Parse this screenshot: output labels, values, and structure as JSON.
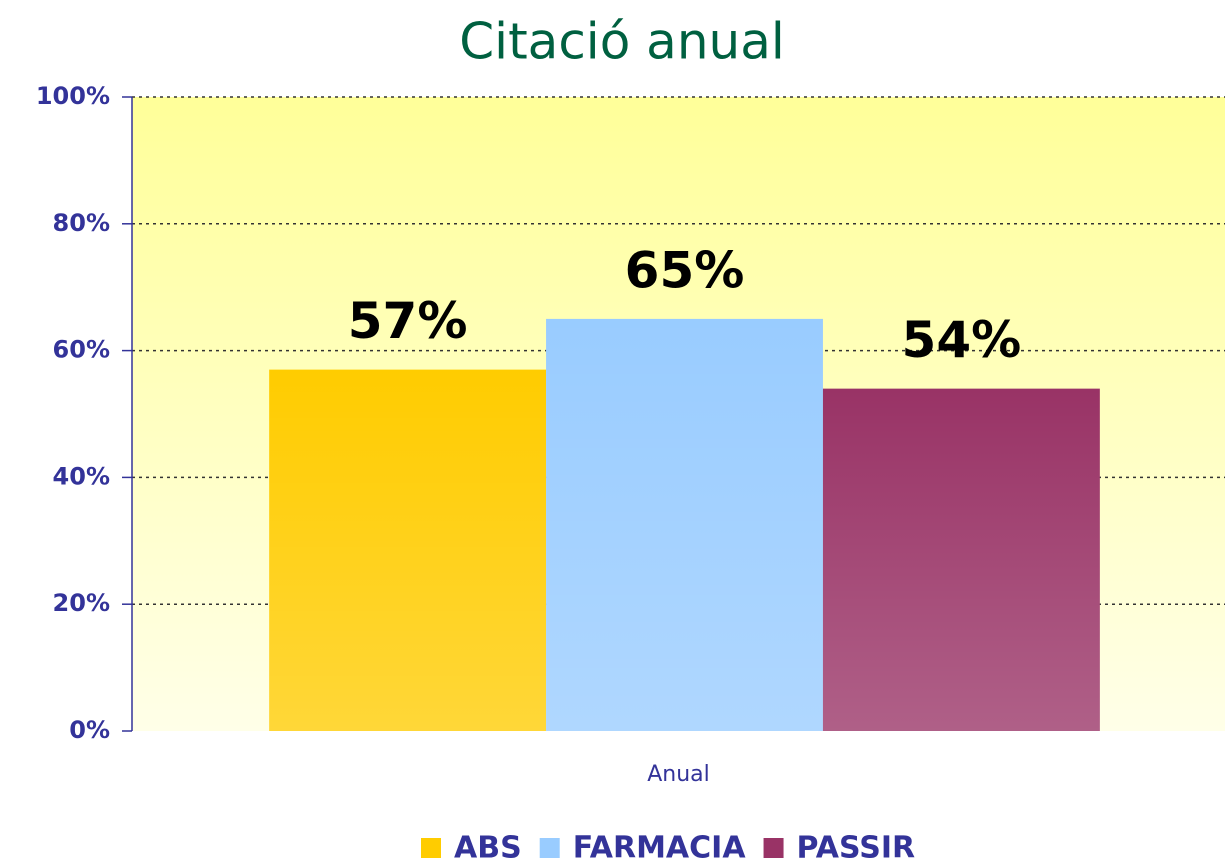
{
  "chart_data": {
    "type": "bar",
    "title": "Citació anual",
    "categories": [
      "Anual"
    ],
    "series": [
      {
        "name": "ABS",
        "color": "#ffcc00",
        "values": [
          57
        ],
        "value_labels": [
          "57%"
        ]
      },
      {
        "name": "FARMACIA",
        "color": "#99ccff",
        "values": [
          65
        ],
        "value_labels": [
          "65%"
        ]
      },
      {
        "name": "PASSIR",
        "color": "#993366",
        "values": [
          54
        ],
        "value_labels": [
          "54%"
        ]
      }
    ],
    "ylim": [
      0,
      100
    ],
    "yticks": [
      {
        "value": 0,
        "label": "0%"
      },
      {
        "value": 20,
        "label": "20%"
      },
      {
        "value": 40,
        "label": "40%"
      },
      {
        "value": 60,
        "label": "60%"
      },
      {
        "value": 80,
        "label": "80%"
      },
      {
        "value": 100,
        "label": "100%"
      }
    ],
    "grid": true,
    "legend": "bottom"
  }
}
